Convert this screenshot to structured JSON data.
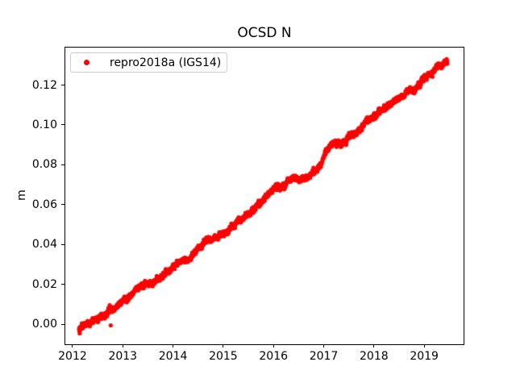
{
  "chart_data": {
    "type": "scatter",
    "title": "OCSD N",
    "xlabel": "",
    "ylabel": "m",
    "grid": false,
    "xlim": [
      2011.84,
      2019.8
    ],
    "ylim": [
      -0.0102,
      0.1394
    ],
    "xticks": [
      2012,
      2013,
      2014,
      2015,
      2016,
      2017,
      2018,
      2019
    ],
    "yticks": [
      0.0,
      0.02,
      0.04,
      0.06,
      0.08,
      0.1,
      0.12
    ],
    "ytick_decimals": 2,
    "colors": {
      "marker": "#ff0000",
      "spine": "#000000",
      "legend_border": "#cccccc",
      "background": "#ffffff"
    },
    "legend": {
      "label": "repro2018a (IGS14)",
      "marker_color": "#ff0000",
      "position": "upper-left"
    },
    "series": [
      {
        "name": "repro2018a (IGS14)",
        "color": "#ff0000",
        "marker": "dot",
        "marker_radius_px": 2.6,
        "x_start": 2012.13,
        "x_end": 2019.46,
        "n_points": 2400,
        "noise_sd": 0.0006,
        "wiggle_persistence": 0.97,
        "wiggle_innovation": 0.0002,
        "trend_anchors": [
          [
            2012.13,
            -0.002
          ],
          [
            2012.25,
            -0.0012
          ],
          [
            2012.4,
            0.0005
          ],
          [
            2012.55,
            0.0035
          ],
          [
            2012.7,
            0.006
          ],
          [
            2012.85,
            0.008
          ],
          [
            2013.0,
            0.0115
          ],
          [
            2013.15,
            0.0135
          ],
          [
            2013.3,
            0.0165
          ],
          [
            2013.45,
            0.019
          ],
          [
            2013.6,
            0.021
          ],
          [
            2013.75,
            0.023
          ],
          [
            2013.9,
            0.026
          ],
          [
            2014.0,
            0.028
          ],
          [
            2014.15,
            0.031
          ],
          [
            2014.3,
            0.033
          ],
          [
            2014.4,
            0.0345
          ],
          [
            2014.5,
            0.038
          ],
          [
            2014.65,
            0.042
          ],
          [
            2014.8,
            0.0435
          ],
          [
            2015.0,
            0.0455
          ],
          [
            2015.15,
            0.049
          ],
          [
            2015.3,
            0.052
          ],
          [
            2015.45,
            0.054
          ],
          [
            2015.6,
            0.0575
          ],
          [
            2015.75,
            0.0605
          ],
          [
            2015.9,
            0.065
          ],
          [
            2016.0,
            0.068
          ],
          [
            2016.1,
            0.07
          ],
          [
            2016.25,
            0.071
          ],
          [
            2016.4,
            0.0725
          ],
          [
            2016.55,
            0.072
          ],
          [
            2016.7,
            0.0745
          ],
          [
            2016.85,
            0.077
          ],
          [
            2016.95,
            0.08
          ],
          [
            2017.05,
            0.0865
          ],
          [
            2017.12,
            0.089
          ],
          [
            2017.25,
            0.09
          ],
          [
            2017.4,
            0.092
          ],
          [
            2017.55,
            0.095
          ],
          [
            2017.7,
            0.0975
          ],
          [
            2017.85,
            0.101
          ],
          [
            2018.0,
            0.1045
          ],
          [
            2018.15,
            0.107
          ],
          [
            2018.3,
            0.11
          ],
          [
            2018.45,
            0.1125
          ],
          [
            2018.6,
            0.1145
          ],
          [
            2018.75,
            0.1165
          ],
          [
            2018.9,
            0.119
          ],
          [
            2019.0,
            0.122
          ],
          [
            2019.1,
            0.125
          ],
          [
            2019.2,
            0.128
          ],
          [
            2019.3,
            0.13
          ],
          [
            2019.4,
            0.13
          ],
          [
            2019.46,
            0.131
          ]
        ],
        "outliers": [
          [
            2012.76,
            -0.0006
          ]
        ]
      }
    ]
  }
}
